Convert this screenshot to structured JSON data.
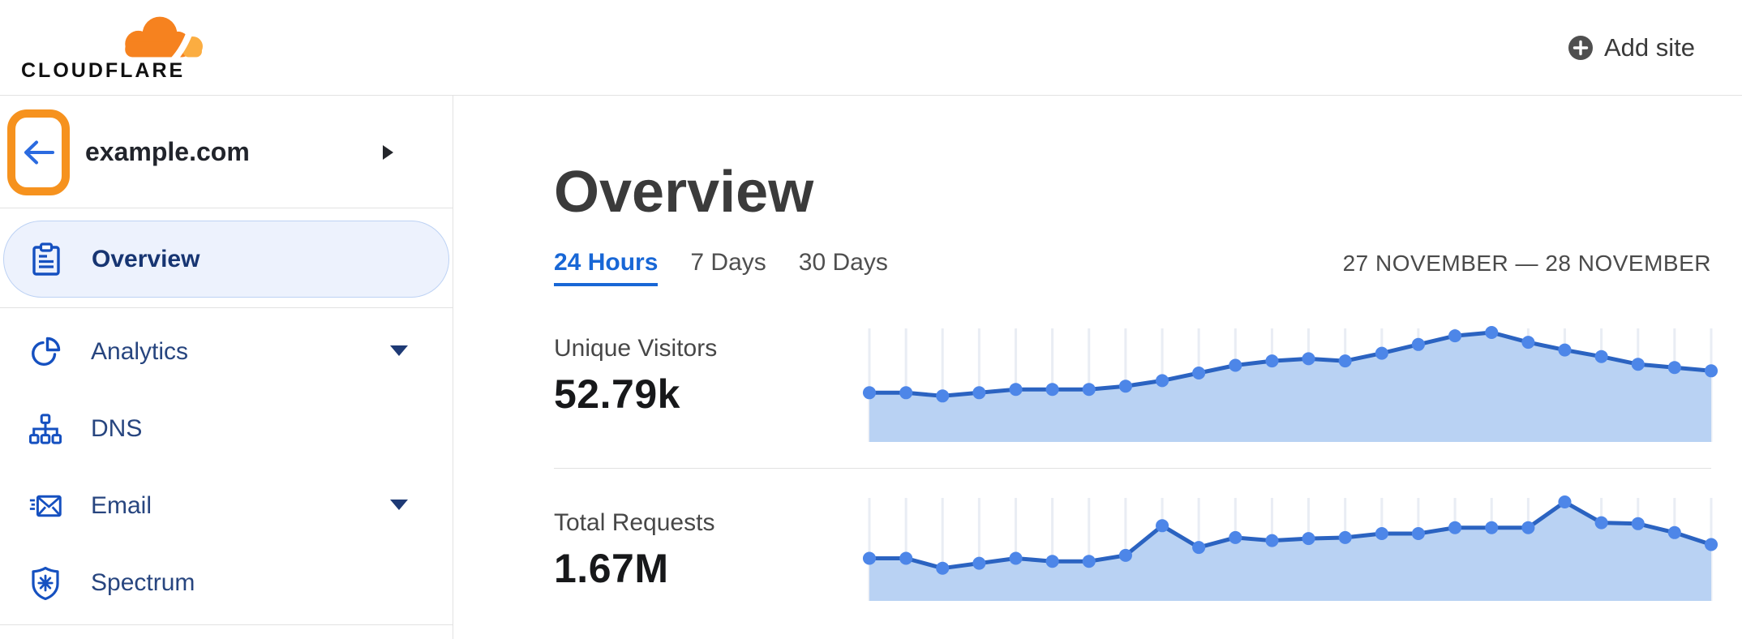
{
  "header": {
    "logo_text": "CLOUDFLARE",
    "add_site_label": "Add site"
  },
  "sidebar": {
    "site_name": "example.com",
    "items": [
      {
        "label": "Overview",
        "icon": "clipboard-icon",
        "selected": true,
        "has_caret": false
      },
      {
        "label": "Analytics",
        "icon": "pie-chart-icon",
        "selected": false,
        "has_caret": true
      },
      {
        "label": "DNS",
        "icon": "dns-tree-icon",
        "selected": false,
        "has_caret": false
      },
      {
        "label": "Email",
        "icon": "email-envelope-icon",
        "selected": false,
        "has_caret": true
      },
      {
        "label": "Spectrum",
        "icon": "shield-icon",
        "selected": false,
        "has_caret": false
      }
    ]
  },
  "main": {
    "title": "Overview",
    "tabs": [
      {
        "label": "24 Hours",
        "active": true
      },
      {
        "label": "7 Days",
        "active": false
      },
      {
        "label": "30 Days",
        "active": false
      }
    ],
    "date_range": "27 NOVEMBER — 28 NOVEMBER",
    "metrics": [
      {
        "label": "Unique Visitors",
        "value": "52.79k"
      },
      {
        "label": "Total Requests",
        "value": "1.67M"
      }
    ]
  },
  "colors": {
    "brand_orange": "#f6821f",
    "brand_orange_light": "#fbad41",
    "annotation_orange": "#f6921e",
    "accent_blue": "#1867d6",
    "sidebar_icon_blue": "#1550c0",
    "sidebar_text_blue": "#27457f",
    "selected_item_bg": "#edf2fd",
    "selected_item_border": "#bdd2f4",
    "chart_fill": "#b9d2f3",
    "chart_line": "#2b63c1",
    "chart_dot": "#4d86e8",
    "gridline": "#e9edf4",
    "divider": "#e2e2e2"
  },
  "chart_data": [
    {
      "type": "area",
      "title": "Unique Visitors",
      "total": "52.79k",
      "time_span": "24 Hours, 27 November — 28 November",
      "points": 24,
      "x_unit": "hour",
      "y_axis_labeled": false,
      "values_pct_of_peak": [
        45,
        45,
        42,
        45,
        48,
        48,
        48,
        51,
        56,
        63,
        70,
        74,
        76,
        74,
        81,
        89,
        97,
        100,
        91,
        84,
        78,
        71,
        68,
        65
      ],
      "grid": "vertical-only",
      "legend": "none"
    },
    {
      "type": "area",
      "title": "Total Requests",
      "total": "1.67M",
      "time_span": "24 Hours, 27 November — 28 November",
      "points": 24,
      "x_unit": "hour",
      "y_axis_labeled": false,
      "values_pct_of_peak": [
        43,
        43,
        33,
        38,
        43,
        40,
        40,
        46,
        76,
        54,
        64,
        61,
        63,
        64,
        68,
        68,
        74,
        74,
        74,
        100,
        79,
        78,
        69,
        57
      ],
      "grid": "vertical-only",
      "legend": "none"
    }
  ]
}
